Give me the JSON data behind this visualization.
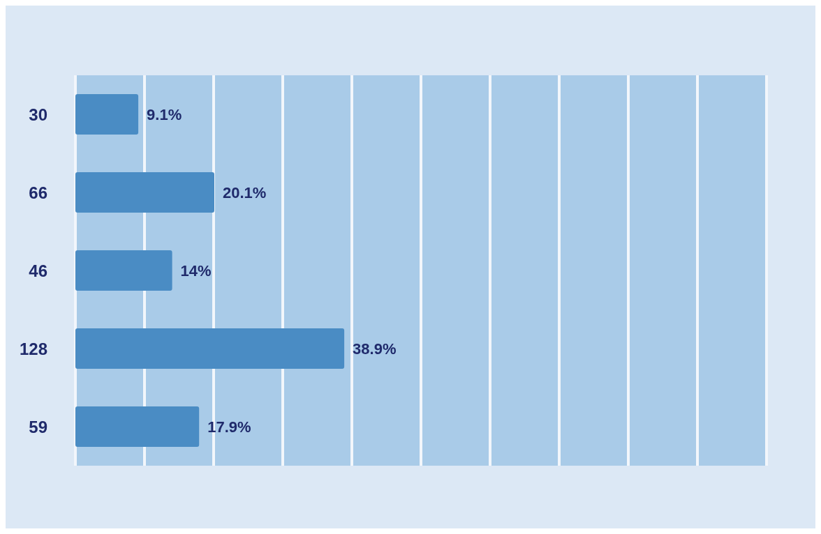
{
  "chart_data": {
    "type": "bar",
    "orientation": "horizontal",
    "categories": [
      "30",
      "66",
      "46",
      "128",
      "59"
    ],
    "values": [
      9.1,
      20.1,
      14,
      38.9,
      17.9
    ],
    "value_labels": [
      "9.1%",
      "20.1%",
      "14%",
      "38.9%",
      "17.9%"
    ],
    "color": "#4a8cc4",
    "xlim": [
      0,
      100
    ],
    "xticks": [
      {
        "value": 0,
        "label": null
      },
      {
        "value": 10,
        "label": null
      },
      {
        "value": 20,
        "label": null
      },
      {
        "value": 30,
        "label": null
      },
      {
        "value": 40,
        "label": null
      },
      {
        "value": 50,
        "label": null
      },
      {
        "value": 60,
        "label": null
      },
      {
        "value": 70,
        "label": null
      },
      {
        "value": 80,
        "label": null
      },
      {
        "value": 90,
        "label": null
      },
      {
        "value": 100,
        "label": null
      }
    ],
    "grid": "x",
    "tick_labels": "y"
  }
}
